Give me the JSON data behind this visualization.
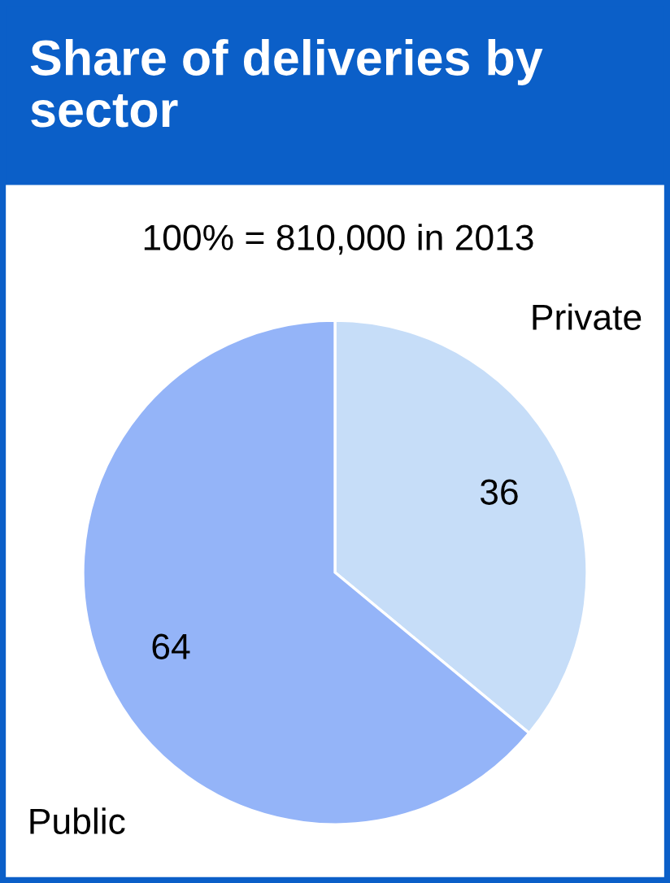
{
  "chart_data": {
    "type": "pie",
    "title": "Share of deliveries by sector",
    "subtitle": "100% = 810,000 in 2013",
    "categories": [
      "Private",
      "Public"
    ],
    "values": [
      36,
      64
    ],
    "colors": [
      "#c6ddf8",
      "#94b4f8"
    ],
    "data_labels": true
  }
}
